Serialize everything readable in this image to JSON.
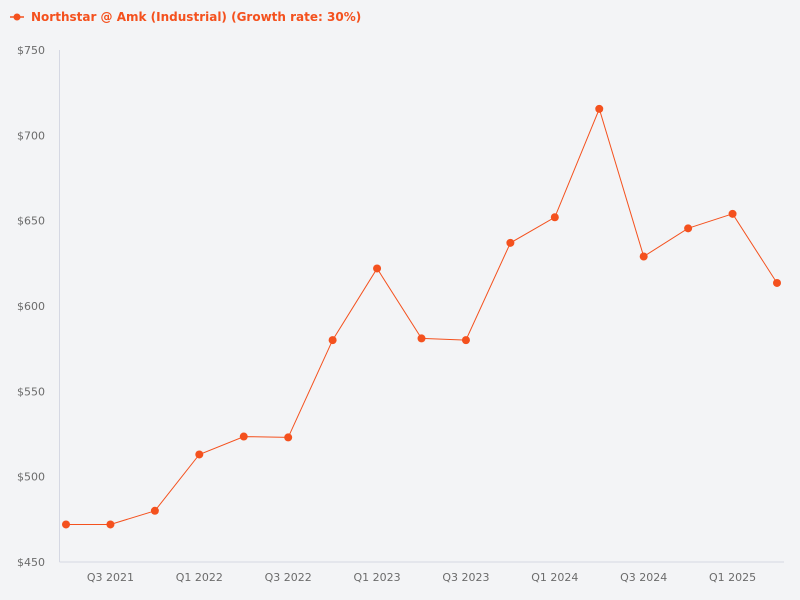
{
  "chart_data": {
    "type": "line",
    "title": "",
    "xlabel": "",
    "ylabel": "",
    "ylim": [
      450,
      750
    ],
    "y_ticks": [
      "$450",
      "$500",
      "$550",
      "$600",
      "$650",
      "$700",
      "$750"
    ],
    "y_tick_values": [
      450,
      500,
      550,
      600,
      650,
      700,
      750
    ],
    "x_tick_labels": [
      "Q3 2021",
      "Q1 2022",
      "Q3 2022",
      "Q1 2023",
      "Q3 2023",
      "Q1 2024",
      "Q3 2024",
      "Q1 2025"
    ],
    "categories": [
      "Q2 2021",
      "Q3 2021",
      "Q4 2021",
      "Q1 2022",
      "Q2 2022",
      "Q3 2022",
      "Q4 2022",
      "Q1 2023",
      "Q2 2023",
      "Q3 2023",
      "Q4 2023",
      "Q1 2024",
      "Q2 2024",
      "Q3 2024",
      "Q4 2024",
      "Q1 2025",
      "Q2 2025"
    ],
    "series": [
      {
        "name": "Northstar @ Amk (Industrial) (Growth rate: 30%)",
        "color": "#f4511e",
        "values": [
          472,
          472,
          480,
          513,
          523.5,
          523,
          580,
          622,
          581,
          580,
          637,
          652,
          715.5,
          629,
          645.5,
          654,
          613.5
        ]
      }
    ],
    "legend_position": "top-left",
    "grid": false
  }
}
